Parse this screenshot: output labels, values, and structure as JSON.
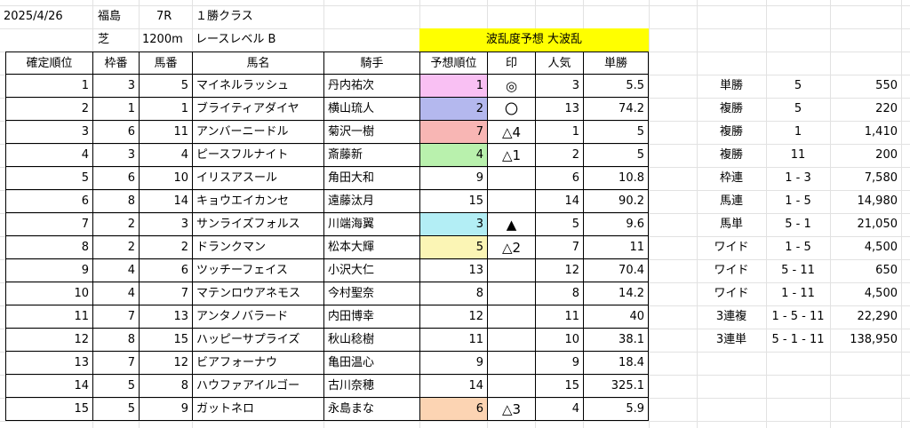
{
  "info": {
    "date": "2025/4/26",
    "venue": "福島",
    "race": "7R",
    "class": "１勝クラス",
    "surface": "芝",
    "distance": "1200m",
    "level": "レースレベル B",
    "forecast": "波乱度予想 大波乱"
  },
  "columns": [
    "確定順位",
    "枠番",
    "馬番",
    "馬名",
    "騎手",
    "予想順位",
    "印",
    "人気",
    "単勝"
  ],
  "rows": [
    {
      "rank": "1",
      "waku": "3",
      "uma": "5",
      "name": "マイネルラッシュ",
      "jockey": "丹内祐次",
      "pred": "1",
      "mark": "◎",
      "pop": "3",
      "odds": "5.5",
      "color": "#f9c0f3"
    },
    {
      "rank": "2",
      "waku": "1",
      "uma": "1",
      "name": "ブライティアダイヤ",
      "jockey": "横山琉人",
      "pred": "2",
      "mark": "〇",
      "pop": "13",
      "odds": "74.2",
      "color": "#b4b8ee"
    },
    {
      "rank": "3",
      "waku": "6",
      "uma": "11",
      "name": "アンバーニードル",
      "jockey": "菊沢一樹",
      "pred": "7",
      "mark": "△4",
      "pop": "1",
      "odds": "5",
      "color": "#f8b6b4"
    },
    {
      "rank": "4",
      "waku": "3",
      "uma": "4",
      "name": "ピースフルナイト",
      "jockey": "斎藤新",
      "pred": "4",
      "mark": "△1",
      "pop": "2",
      "odds": "5",
      "color": "#b9f1ad"
    },
    {
      "rank": "5",
      "waku": "6",
      "uma": "10",
      "name": "イリスアスール",
      "jockey": "角田大和",
      "pred": "9",
      "mark": "",
      "pop": "6",
      "odds": "10.8",
      "color": ""
    },
    {
      "rank": "6",
      "waku": "8",
      "uma": "14",
      "name": "キョウエイカンセ",
      "jockey": "遠藤汰月",
      "pred": "15",
      "mark": "",
      "pop": "14",
      "odds": "90.2",
      "color": ""
    },
    {
      "rank": "7",
      "waku": "2",
      "uma": "3",
      "name": "サンライズフォルス",
      "jockey": "川端海翼",
      "pred": "3",
      "mark": "▲",
      "pop": "5",
      "odds": "9.6",
      "color": "#b3eef5"
    },
    {
      "rank": "8",
      "waku": "2",
      "uma": "2",
      "name": "ドランクマン",
      "jockey": "松本大輝",
      "pred": "5",
      "mark": "△2",
      "pop": "7",
      "odds": "11",
      "color": "#fbf5b5"
    },
    {
      "rank": "9",
      "waku": "4",
      "uma": "6",
      "name": "ツッチーフェイス",
      "jockey": "小沢大仁",
      "pred": "13",
      "mark": "",
      "pop": "12",
      "odds": "70.4",
      "color": ""
    },
    {
      "rank": "10",
      "waku": "4",
      "uma": "7",
      "name": "マテンロウアネモス",
      "jockey": "今村聖奈",
      "pred": "8",
      "mark": "",
      "pop": "8",
      "odds": "14.2",
      "color": ""
    },
    {
      "rank": "11",
      "waku": "7",
      "uma": "13",
      "name": "アンタノバラード",
      "jockey": "内田博幸",
      "pred": "12",
      "mark": "",
      "pop": "11",
      "odds": "40",
      "color": ""
    },
    {
      "rank": "12",
      "waku": "8",
      "uma": "15",
      "name": "ハッピーサプライズ",
      "jockey": "秋山稔樹",
      "pred": "11",
      "mark": "",
      "pop": "10",
      "odds": "38.1",
      "color": ""
    },
    {
      "rank": "13",
      "waku": "7",
      "uma": "12",
      "name": "ビアフォーナウ",
      "jockey": "亀田温心",
      "pred": "9",
      "mark": "",
      "pop": "9",
      "odds": "18.4",
      "color": ""
    },
    {
      "rank": "14",
      "waku": "5",
      "uma": "8",
      "name": "ハウファアイルゴー",
      "jockey": "古川奈穂",
      "pred": "14",
      "mark": "",
      "pop": "15",
      "odds": "325.1",
      "color": ""
    },
    {
      "rank": "15",
      "waku": "5",
      "uma": "9",
      "name": "ガットネロ",
      "jockey": "永島まな",
      "pred": "6",
      "mark": "△3",
      "pop": "4",
      "odds": "5.9",
      "color": "#fcd4b3"
    }
  ],
  "payouts": [
    {
      "type": "単勝",
      "combo": "5",
      "amount": "550"
    },
    {
      "type": "複勝",
      "combo": "5",
      "amount": "220"
    },
    {
      "type": "複勝",
      "combo": "1",
      "amount": "1,410"
    },
    {
      "type": "複勝",
      "combo": "11",
      "amount": "200"
    },
    {
      "type": "枠連",
      "combo": "1 - 3",
      "amount": "7,580"
    },
    {
      "type": "馬連",
      "combo": "1 - 5",
      "amount": "14,980"
    },
    {
      "type": "馬単",
      "combo": "5 - 1",
      "amount": "21,050"
    },
    {
      "type": "ワイド",
      "combo": "1 - 5",
      "amount": "4,500"
    },
    {
      "type": "ワイド",
      "combo": "5 - 11",
      "amount": "650"
    },
    {
      "type": "ワイド",
      "combo": "1 - 11",
      "amount": "4,500"
    },
    {
      "type": "3連複",
      "combo": "1 - 5 - 11",
      "amount": "22,290"
    },
    {
      "type": "3連単",
      "combo": "5 - 1 - 11",
      "amount": "138,950"
    }
  ],
  "colors": {
    "forecast_bg": "#ffff00",
    "grid": "#e2e2e2",
    "border": "#000000"
  }
}
